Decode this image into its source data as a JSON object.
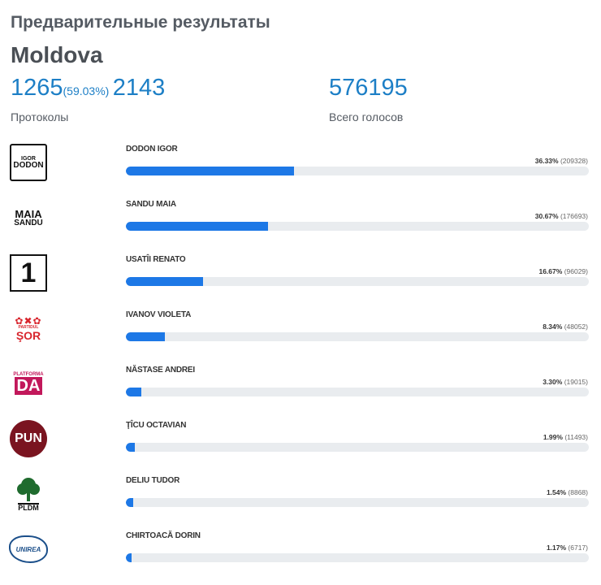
{
  "header": {
    "title": "Предварительные результаты",
    "country": "Moldova"
  },
  "stats": {
    "protocols_counted": "1265",
    "protocols_percent": "(59.03%)",
    "protocols_total": "2143",
    "protocols_label": "Протоколы",
    "votes_total": "576195",
    "votes_label": "Всего голосов"
  },
  "colors": {
    "accent": "#1d7fc6",
    "bar_fill": "#1d78e6",
    "bar_track": "#e9ecef"
  },
  "candidates": [
    {
      "name": "DODON IGOR",
      "percent": "36.33%",
      "votes": "(209328)",
      "share": 36.33,
      "logo_icon": "igor-dodon-logo-icon",
      "logo_text_1": "IGOR",
      "logo_text_2": "DODON"
    },
    {
      "name": "SANDU MAIA",
      "percent": "30.67%",
      "votes": "(176693)",
      "share": 30.67,
      "logo_icon": "maia-sandu-logo-icon",
      "logo_text_1": "MAIA",
      "logo_text_2": "SANDU"
    },
    {
      "name": "USATÎI RENATO",
      "percent": "16.67%",
      "votes": "(96029)",
      "share": 16.67,
      "logo_icon": "number-one-logo-icon",
      "logo_text_1": "1"
    },
    {
      "name": "IVANOV VIOLETA",
      "percent": "8.34%",
      "votes": "(48052)",
      "share": 8.34,
      "logo_icon": "partidul-sor-logo-icon",
      "logo_text_1": "PARTIDUL",
      "logo_text_2": "ŞOR"
    },
    {
      "name": "NĂSTASE ANDREI",
      "percent": "3.30%",
      "votes": "(19015)",
      "share": 3.3,
      "logo_icon": "platforma-da-logo-icon",
      "logo_text_1": "PLATFORMA",
      "logo_text_2": "DA"
    },
    {
      "name": "ŢÎCU OCTAVIAN",
      "percent": "1.99%",
      "votes": "(11493)",
      "share": 1.99,
      "logo_icon": "pun-logo-icon",
      "logo_text_1": "PUN"
    },
    {
      "name": "DELIU TUDOR",
      "percent": "1.54%",
      "votes": "(8868)",
      "share": 1.54,
      "logo_icon": "pldm-tree-logo-icon",
      "logo_text_1": "PLDM"
    },
    {
      "name": "CHIRTOACĂ DORIN",
      "percent": "1.17%",
      "votes": "(6717)",
      "share": 1.17,
      "logo_icon": "unirea-map-logo-icon",
      "logo_text_1": "UNIREA"
    }
  ]
}
